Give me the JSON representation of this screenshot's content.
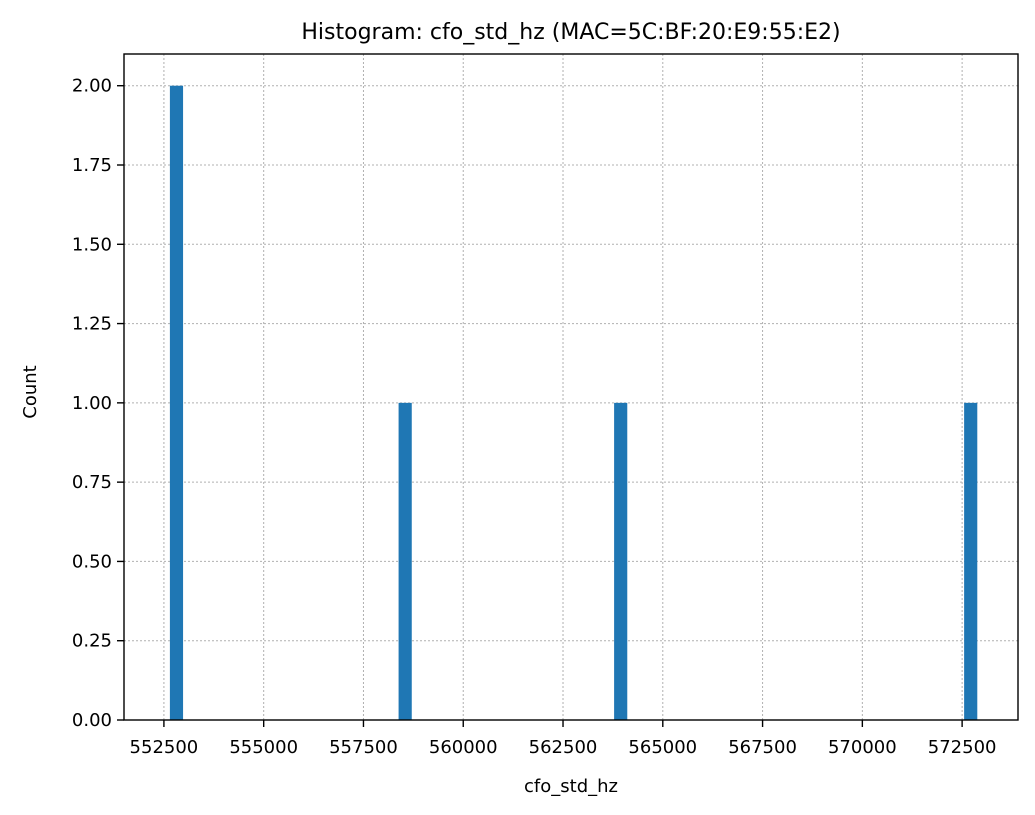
{
  "chart_data": {
    "type": "bar",
    "title": "Histogram: cfo_std_hz (MAC=5C:BF:20:E9:55:E2)",
    "xlabel": "cfo_std_hz",
    "ylabel": "Count",
    "xlim": [
      551500,
      573900
    ],
    "ylim": [
      0,
      2.1
    ],
    "xticks": [
      552500,
      555000,
      557500,
      560000,
      562500,
      565000,
      567500,
      570000,
      572500
    ],
    "yticks": [
      "0.00",
      "0.25",
      "0.50",
      "0.75",
      "1.00",
      "1.25",
      "1.50",
      "1.75",
      "2.00"
    ],
    "grid": true,
    "bar_color": "#1f77b4",
    "bins": [
      {
        "x0": 552650,
        "x1": 552980,
        "count": 2
      },
      {
        "x0": 558380,
        "x1": 558710,
        "count": 1
      },
      {
        "x0": 563780,
        "x1": 564110,
        "count": 1
      },
      {
        "x0": 572550,
        "x1": 572880,
        "count": 1
      }
    ]
  }
}
